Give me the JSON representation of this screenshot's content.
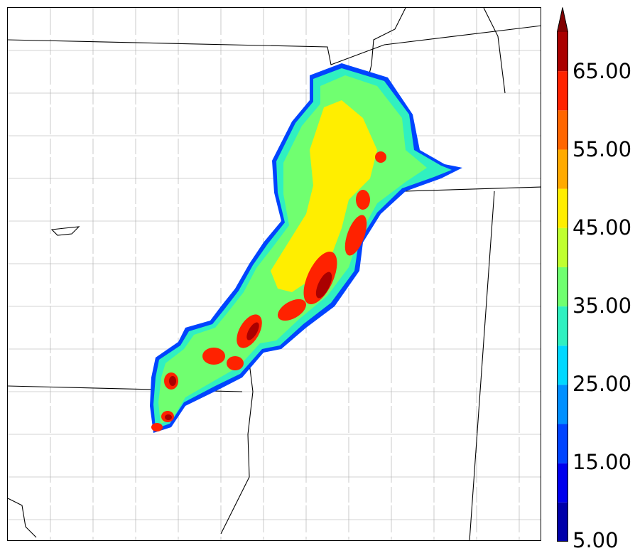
{
  "colorbar": {
    "tick_labels": [
      "5.00",
      "15.00",
      "25.00",
      "35.00",
      "45.00",
      "55.00",
      "65.00"
    ],
    "bands": [
      {
        "from": 5,
        "to": 10,
        "color": "#0000aa"
      },
      {
        "from": 10,
        "to": 15,
        "color": "#0000ee"
      },
      {
        "from": 15,
        "to": 20,
        "color": "#0044ff"
      },
      {
        "from": 20,
        "to": 25,
        "color": "#0090ff"
      },
      {
        "from": 25,
        "to": 30,
        "color": "#00d8ff"
      },
      {
        "from": 30,
        "to": 35,
        "color": "#30f0c0"
      },
      {
        "from": 35,
        "to": 40,
        "color": "#70ff70"
      },
      {
        "from": 40,
        "to": 45,
        "color": "#c0ff30"
      },
      {
        "from": 45,
        "to": 50,
        "color": "#ffee00"
      },
      {
        "from": 50,
        "to": 55,
        "color": "#ffaa00"
      },
      {
        "from": 55,
        "to": 60,
        "color": "#ff6600"
      },
      {
        "from": 60,
        "to": 65,
        "color": "#ff2200"
      },
      {
        "from": 65,
        "to": 70,
        "color": "#aa0000"
      }
    ],
    "extend": "max",
    "extend_color": "#800000"
  },
  "map": {
    "background": "#ffffff",
    "state_line_color": "#000000",
    "county_line_color": "#999999"
  }
}
